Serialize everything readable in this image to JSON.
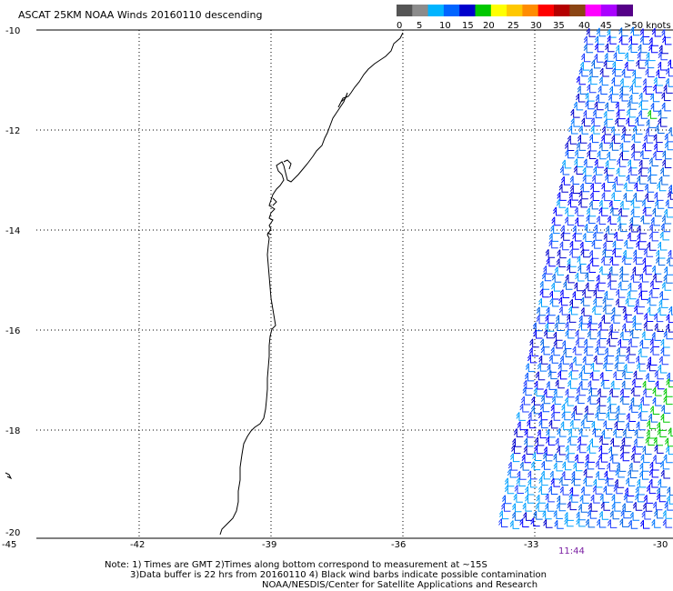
{
  "title": "ASCAT 25KM NOAA Winds 20160110 descending",
  "legend": {
    "colors": [
      "#555555",
      "#8c8c8c",
      "#00b4ff",
      "#0064ff",
      "#0000cd",
      "#00c800",
      "#ffff00",
      "#ffc800",
      "#ff8c00",
      "#ff0000",
      "#b40000",
      "#8b4513",
      "#ff00ff",
      "#aa00ff",
      "#550088"
    ],
    "labels": [
      "0",
      "5",
      "10",
      "15",
      "20",
      "25",
      "30",
      "35",
      "40",
      "45",
      ">50 knots"
    ]
  },
  "axes": {
    "lat_labels": [
      "-10",
      "-12",
      "-14",
      "-16",
      "-18",
      "-20"
    ],
    "lon_labels": [
      "-45",
      "-42",
      "-39",
      "-36",
      "-33",
      "-30"
    ]
  },
  "swath": {
    "time_label": "11:44"
  },
  "notes": {
    "line1": "Note: 1) Times are GMT 2)Times along bottom correspond to measurement at ~15S",
    "line2": "3)Data buffer is 22 hrs from 20160110 4) Black wind barbs indicate possible contamination",
    "line3": "NOAA/NESDIS/Center for Satellite Applications and Research"
  }
}
